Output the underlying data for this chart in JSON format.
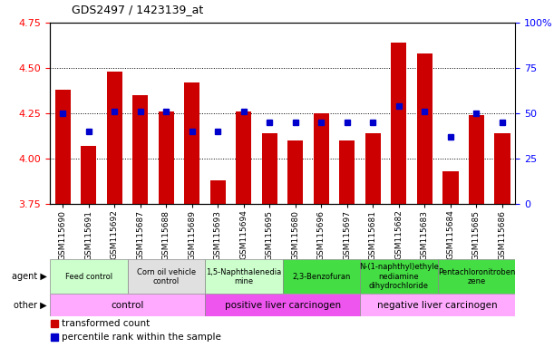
{
  "title": "GDS2497 / 1423139_at",
  "samples": [
    "GSM115690",
    "GSM115691",
    "GSM115692",
    "GSM115687",
    "GSM115688",
    "GSM115689",
    "GSM115693",
    "GSM115694",
    "GSM115695",
    "GSM115680",
    "GSM115696",
    "GSM115697",
    "GSM115681",
    "GSM115682",
    "GSM115683",
    "GSM115684",
    "GSM115685",
    "GSM115686"
  ],
  "transformed_count": [
    4.38,
    4.07,
    4.48,
    4.35,
    4.26,
    4.42,
    3.88,
    4.26,
    4.14,
    4.1,
    4.25,
    4.1,
    4.14,
    4.64,
    4.58,
    3.93,
    4.24,
    4.14
  ],
  "percentile_rank": [
    50,
    40,
    51,
    51,
    51,
    40,
    40,
    51,
    45,
    45,
    45,
    45,
    45,
    54,
    51,
    37,
    50,
    45
  ],
  "bar_color": "#cc0000",
  "dot_color": "#0000cc",
  "ylim": [
    3.75,
    4.75
  ],
  "yticks": [
    3.75,
    4.0,
    4.25,
    4.5,
    4.75
  ],
  "y2lim": [
    0,
    100
  ],
  "y2ticks": [
    0,
    25,
    50,
    75,
    100
  ],
  "y2ticklabels": [
    "0",
    "25",
    "50",
    "75",
    "100%"
  ],
  "agent_groups": [
    {
      "label": "Feed control",
      "start": 0,
      "end": 3,
      "color": "#ccffcc"
    },
    {
      "label": "Corn oil vehicle\ncontrol",
      "start": 3,
      "end": 6,
      "color": "#e0e0e0"
    },
    {
      "label": "1,5-Naphthalenedia\nmine",
      "start": 6,
      "end": 9,
      "color": "#ccffcc"
    },
    {
      "label": "2,3-Benzofuran",
      "start": 9,
      "end": 12,
      "color": "#44dd44"
    },
    {
      "label": "N-(1-naphthyl)ethyle\nnediamine\ndihydrochloride",
      "start": 12,
      "end": 15,
      "color": "#44dd44"
    },
    {
      "label": "Pentachloronitroben\nzene",
      "start": 15,
      "end": 18,
      "color": "#44dd44"
    }
  ],
  "other_groups": [
    {
      "label": "control",
      "start": 0,
      "end": 6,
      "color": "#ffaaff"
    },
    {
      "label": "positive liver carcinogen",
      "start": 6,
      "end": 12,
      "color": "#ee55ee"
    },
    {
      "label": "negative liver carcinogen",
      "start": 12,
      "end": 18,
      "color": "#ffaaff"
    }
  ],
  "legend_items": [
    {
      "label": "transformed count",
      "color": "#cc0000"
    },
    {
      "label": "percentile rank within the sample",
      "color": "#0000cc"
    }
  ],
  "bg_color": "#ffffff"
}
